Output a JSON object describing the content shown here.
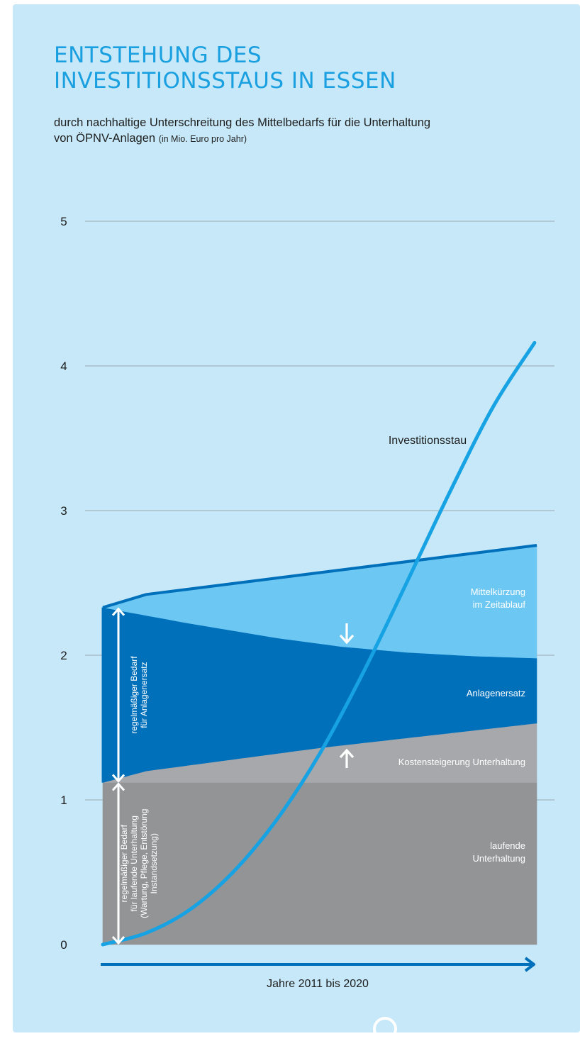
{
  "header": {
    "title_lines": [
      "ENTSTEHUNG DES",
      "INVESTITIONSSTAUS IN ESSEN"
    ],
    "subtitle_line1": "durch nachhaltige Unterschreitung des Mittelbedarfs für die Unterhaltung",
    "subtitle_line2": "von ÖPNV-Anlagen",
    "subtitle_unit": "(in Mio. Euro pro Jahr)"
  },
  "colors": {
    "background": "#c6e8f8",
    "title": "#1aa0e0",
    "laufende_unterhaltung": "#939496",
    "kostensteigerung": "#a6a8ab",
    "anlagenersatz": "#0070bb",
    "mittelkuerzung": "#6cc8f2",
    "investitionsstau_line": "#16a2e3",
    "gridline": "#9aa7b0",
    "x_arrow": "#0070bb"
  },
  "chart_data": {
    "type": "area",
    "title": "ENTSTEHUNG DES INVESTITIONSSTAUS IN ESSEN",
    "subtitle": "durch nachhaltige Unterschreitung des Mittelbedarfs für die Unterhaltung von ÖPNV-Anlagen (in Mio. Euro pro Jahr)",
    "xlabel": "Jahre 2011 bis 2020",
    "ylabel": "",
    "xlim": [
      0,
      10
    ],
    "ylim": [
      0,
      5
    ],
    "yticks": [
      0,
      1,
      2,
      3,
      4,
      5
    ],
    "grid": true,
    "stacked_bands": [
      {
        "name": "laufende Unterhaltung",
        "label_lines": [
          "laufende",
          "Unterhaltung"
        ],
        "lower": [
          [
            0,
            0
          ],
          [
            10,
            0
          ]
        ],
        "upper": [
          [
            0,
            1.12
          ],
          [
            10,
            1.12
          ]
        ]
      },
      {
        "name": "Kostensteigerung Unterhaltung",
        "label_lines": [
          "Kostensteigerung Unterhaltung"
        ],
        "lower": [
          [
            0,
            1.12
          ],
          [
            10,
            1.12
          ]
        ],
        "upper": [
          [
            0,
            1.12
          ],
          [
            1,
            1.2
          ],
          [
            5,
            1.36
          ],
          [
            10,
            1.53
          ]
        ]
      },
      {
        "name": "Anlagenersatz",
        "label_lines": [
          "Anlagenersatz"
        ],
        "lower": [
          [
            0,
            1.12
          ],
          [
            1,
            1.2
          ],
          [
            5,
            1.36
          ],
          [
            10,
            1.53
          ]
        ],
        "upper": [
          [
            0,
            2.33
          ],
          [
            2,
            2.22
          ],
          [
            4,
            2.12
          ],
          [
            5.5,
            2.06
          ],
          [
            7,
            2.02
          ],
          [
            8.5,
            1.995
          ],
          [
            10,
            1.98
          ]
        ]
      },
      {
        "name": "Mittelkürzung im Zeitablauf",
        "label_lines": [
          "Mittelkürzung",
          "im Zeitablauf"
        ],
        "lower": [
          [
            0,
            2.33
          ],
          [
            2,
            2.22
          ],
          [
            4,
            2.12
          ],
          [
            5.5,
            2.06
          ],
          [
            7,
            2.02
          ],
          [
            8.5,
            1.995
          ],
          [
            10,
            1.98
          ]
        ],
        "upper": [
          [
            0,
            2.33
          ],
          [
            1,
            2.42
          ],
          [
            10,
            2.76
          ]
        ]
      }
    ],
    "series": [
      {
        "name": "Investitionsstau",
        "type": "line",
        "points": [
          [
            0,
            0
          ],
          [
            1,
            0.08
          ],
          [
            2,
            0.24
          ],
          [
            3,
            0.5
          ],
          [
            4,
            0.86
          ],
          [
            5,
            1.32
          ],
          [
            6,
            1.88
          ],
          [
            7,
            2.5
          ],
          [
            8,
            3.13
          ],
          [
            9,
            3.72
          ],
          [
            9.95,
            4.16
          ]
        ]
      }
    ],
    "braces": [
      {
        "from": 0,
        "to": 1.12,
        "label_lines": [
          "regelmäßiger Bedarf",
          "für laufende Unterhaltung",
          "(Wartung, Pflege, Entstörung",
          "Instandsetzung)"
        ]
      },
      {
        "from": 1.12,
        "to": 2.33,
        "label_lines": [
          "regelmäßiger Bedarf",
          "für Anlagenersatz"
        ]
      }
    ],
    "arrows": [
      {
        "direction": "down",
        "at": [
          5.5,
          2.2
        ]
      },
      {
        "direction": "up",
        "at": [
          5.5,
          1.3
        ]
      }
    ]
  }
}
